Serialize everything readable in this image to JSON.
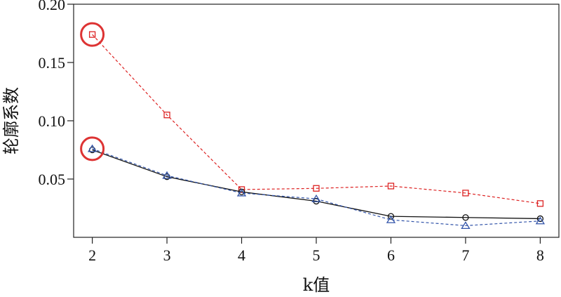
{
  "chart_data": {
    "type": "line",
    "xlabel": "k值",
    "ylabel": "轮廓系数",
    "x": [
      2,
      3,
      4,
      5,
      6,
      7,
      8
    ],
    "xlim": [
      1.75,
      8.25
    ],
    "ylim": [
      0.0,
      0.2
    ],
    "x_ticks": [
      "2",
      "3",
      "4",
      "5",
      "6",
      "7",
      "8"
    ],
    "y_ticks": [
      "0.05",
      "0.10",
      "0.15",
      "0.20"
    ],
    "grid": false,
    "series": [
      {
        "color": "#dd2222",
        "line_style": "dashed",
        "marker": "square",
        "values": [
          0.174,
          0.105,
          0.041,
          0.042,
          0.044,
          0.038,
          0.029
        ]
      },
      {
        "color": "#111111",
        "line_style": "solid",
        "marker": "circle",
        "values": [
          0.075,
          0.052,
          0.039,
          0.031,
          0.018,
          0.017,
          0.016
        ]
      },
      {
        "color": "#3355aa",
        "line_style": "dashed",
        "marker": "triangle",
        "values": [
          0.076,
          0.053,
          0.038,
          0.033,
          0.015,
          0.01,
          0.014
        ]
      }
    ],
    "annotations": [
      {
        "type": "circle-highlight",
        "x": 2,
        "y": 0.174,
        "color": "#dd3333"
      },
      {
        "type": "circle-highlight",
        "x": 2,
        "y": 0.076,
        "color": "#dd3333"
      }
    ]
  }
}
